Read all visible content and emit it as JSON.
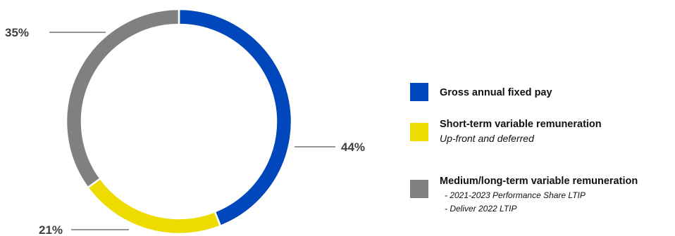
{
  "chart_data": {
    "type": "pie",
    "donut": true,
    "series": [
      {
        "name": "Gross annual fixed pay",
        "value": 44,
        "label": "44%",
        "color": "#0047BB"
      },
      {
        "name": "Short-term variable remuneration",
        "subtitle": "Up-front and deferred",
        "value": 21,
        "label": "21%",
        "color": "#EEDC00"
      },
      {
        "name": "Medium/long-term variable remuneration",
        "bullets": [
          "-  2021-2023 Performance Share LTIP",
          "-  Deliver 2022 LTIP"
        ],
        "value": 35,
        "label": "35%",
        "color": "#808080"
      }
    ],
    "legend_position": "right"
  }
}
